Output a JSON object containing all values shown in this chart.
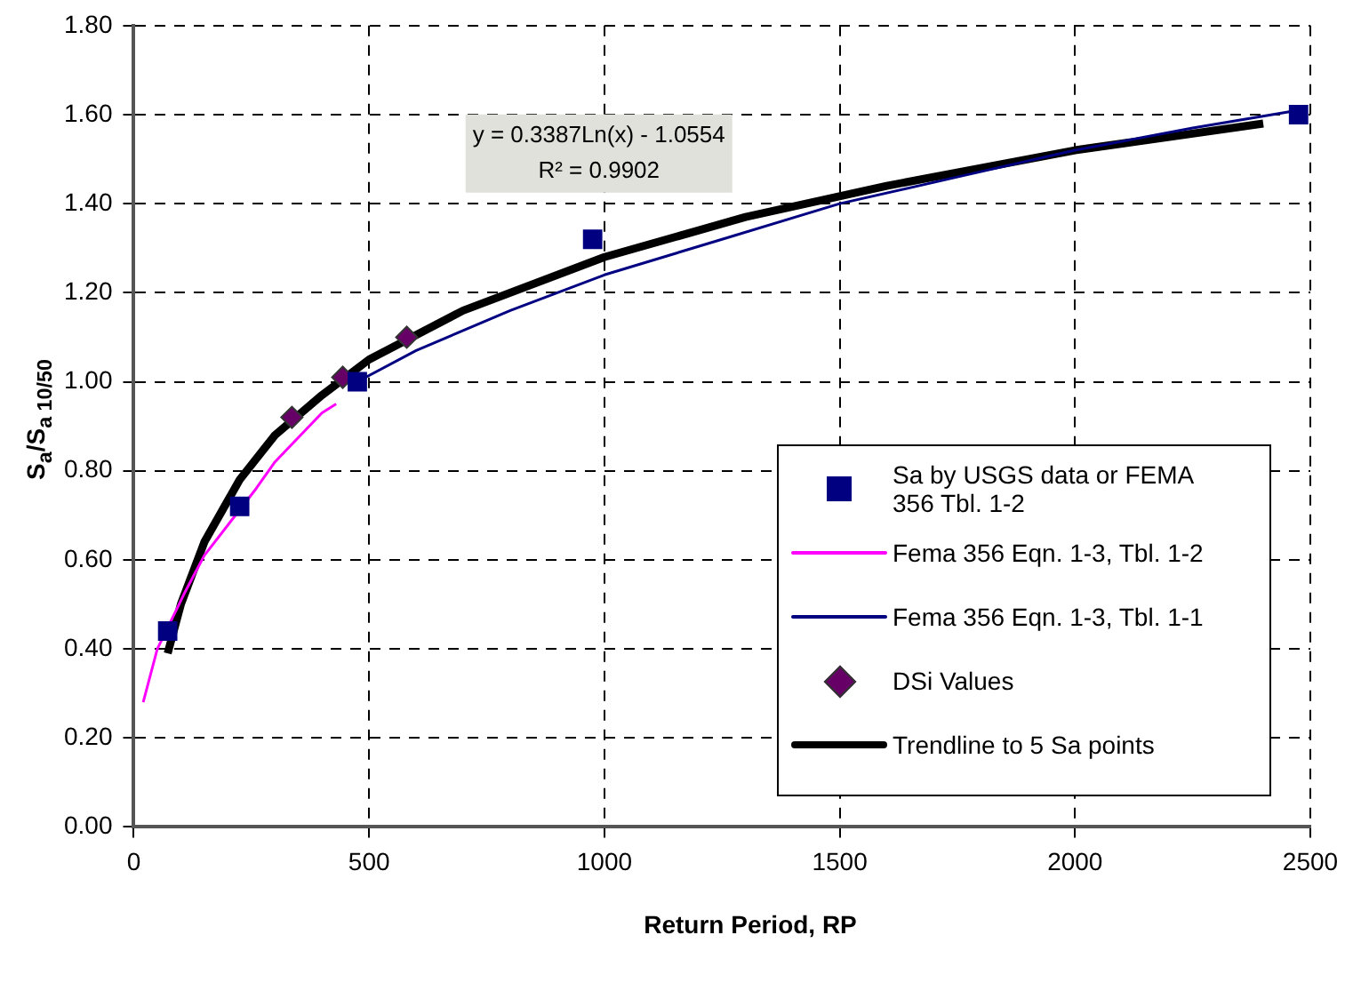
{
  "chart_data": {
    "type": "scatter",
    "xlabel": "Return Period, RP",
    "ylabel": "S$_{a}$/S$_{a 10/50}$",
    "xlim": [
      0,
      2500
    ],
    "xticks": [
      0,
      500,
      1000,
      1500,
      2000,
      2500
    ],
    "ylim": [
      0,
      1.8
    ],
    "yticks": [
      {
        "value": 0,
        "label": "0.00"
      },
      {
        "value": 0.2,
        "label": "0.20"
      },
      {
        "value": 0.4,
        "label": "0.40"
      },
      {
        "value": 0.6,
        "label": "0.60"
      },
      {
        "value": 0.8,
        "label": "0.80"
      },
      {
        "value": 1,
        "label": "1.00"
      },
      {
        "value": 1.2,
        "label": "1.20"
      },
      {
        "value": 1.4,
        "label": "1.40"
      },
      {
        "value": 1.6,
        "label": "1.60"
      },
      {
        "value": 1.8,
        "label": "1.80"
      }
    ],
    "grid": true,
    "legend": "bottom right",
    "annotations": [
      "y = 0.3387Ln(x) - 1.0554",
      "R² = 0.9902"
    ],
    "series": [
      {
        "name": "Sa by USGS data or FEMA 356 Tbl. 1-2",
        "type": "scatter",
        "marker": "square",
        "color": "#000080",
        "x": [
          72,
          225,
          475,
          975,
          2475
        ],
        "values": [
          0.44,
          0.72,
          1.0,
          1.32,
          1.6
        ]
      },
      {
        "name": "Fema 356 Eqn. 1-3, Tbl. 1-2",
        "type": "line",
        "marker": "none",
        "color": "#ff00ff",
        "x": [
          20,
          50,
          110,
          150,
          260,
          300,
          400,
          430
        ],
        "values": [
          0.28,
          0.4,
          0.53,
          0.61,
          0.76,
          0.82,
          0.93,
          0.95
        ]
      },
      {
        "name": "Fema 356 Eqn. 1-3, Tbl. 1-1",
        "type": "line",
        "marker": "none",
        "color": "#000080",
        "x": [
          475,
          600,
          800,
          1000,
          1250,
          1500,
          1750,
          2000,
          2250,
          2475
        ],
        "values": [
          1.0,
          1.07,
          1.16,
          1.24,
          1.32,
          1.4,
          1.46,
          1.52,
          1.57,
          1.61
        ]
      },
      {
        "name": "DSi Values",
        "type": "scatter",
        "marker": "diamond",
        "color": "#660066",
        "x": [
          336,
          444,
          580
        ],
        "values": [
          0.92,
          1.01,
          1.1
        ]
      },
      {
        "name": "Trendline to 5 Sa points",
        "type": "line",
        "marker": "none",
        "color": "#000000",
        "x": [
          72,
          100,
          150,
          225,
          300,
          400,
          500,
          700,
          1000,
          1300,
          1600,
          2000,
          2400
        ],
        "values": [
          0.39,
          0.5,
          0.64,
          0.78,
          0.88,
          0.97,
          1.05,
          1.16,
          1.28,
          1.37,
          1.44,
          1.52,
          1.58
        ]
      }
    ]
  }
}
